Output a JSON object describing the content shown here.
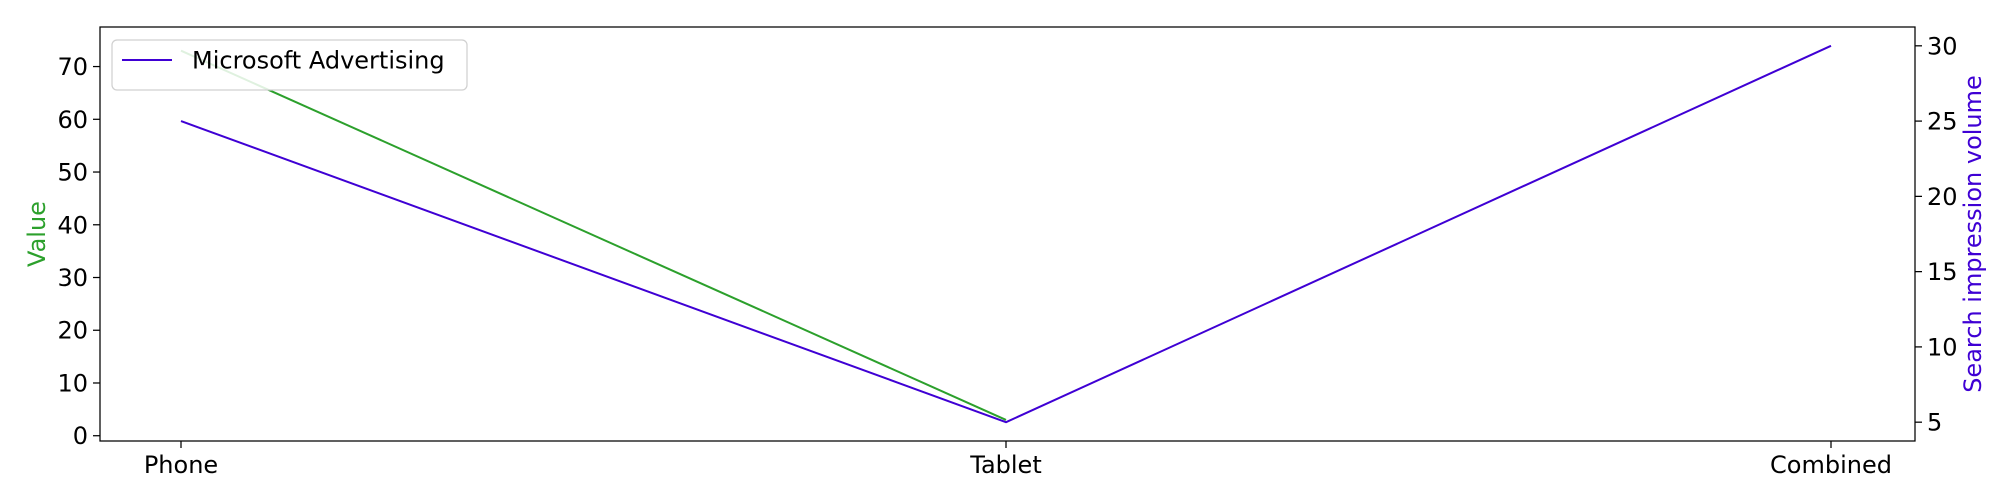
{
  "chart_data": {
    "type": "line",
    "categories": [
      "Phone",
      "Tablet",
      "Combined"
    ],
    "left_axis": {
      "label": "Value",
      "color": "#2ca02c",
      "ylim": [
        -1,
        77.5
      ],
      "ticks": [
        0,
        10,
        20,
        30,
        40,
        50,
        60,
        70
      ]
    },
    "right_axis": {
      "label": "Search impression volume",
      "color": "#3f00d4",
      "ylim": [
        3.75,
        31.25
      ],
      "ticks": [
        5,
        10,
        15,
        20,
        25,
        30
      ]
    },
    "series": [
      {
        "axis": "left",
        "color": "#2ca02c",
        "values": [
          73,
          3,
          null
        ]
      },
      {
        "name": "Microsoft Advertising",
        "axis": "right",
        "color": "#3f00d4",
        "values": [
          25,
          5,
          30
        ]
      }
    ],
    "legend": {
      "placement": "upper-left",
      "entries": [
        "Microsoft Advertising"
      ]
    },
    "grid": false
  }
}
